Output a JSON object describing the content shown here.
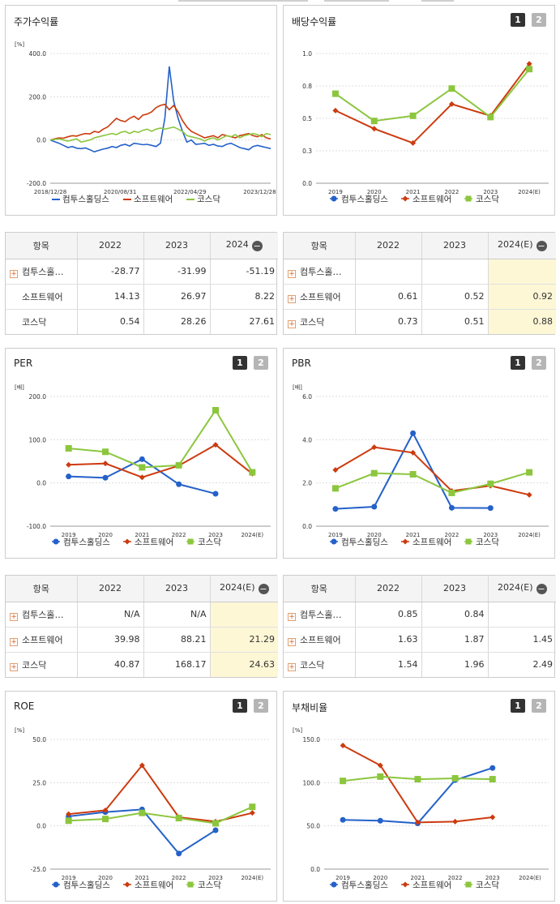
{
  "colors": {
    "s1": "#2461c9",
    "s2": "#cc3b0f",
    "s3": "#8cc63e",
    "hl": "#fdf7d6"
  },
  "legend": [
    "컴투스홀딩스",
    "소프트웨어",
    "코스닥"
  ],
  "panels": {
    "price": {
      "title": "주가수익률"
    },
    "dividend": {
      "title": "배당수익률"
    },
    "per": {
      "title": "PER"
    },
    "pbr": {
      "title": "PBR"
    },
    "roe": {
      "title": "ROE"
    },
    "debt": {
      "title": "부채비율"
    }
  },
  "buttons": {
    "one": "1",
    "two": "2"
  },
  "tables": {
    "price": {
      "headers": [
        "항목",
        "2022",
        "2023",
        "2024"
      ],
      "rows": [
        {
          "name": "컴투스홀…",
          "plus": true,
          "vals": [
            "-28.77",
            "-31.99",
            "-51.19"
          ]
        },
        {
          "name": "소프트웨어",
          "plus": false,
          "vals": [
            "14.13",
            "26.97",
            "8.22"
          ]
        },
        {
          "name": "코스닥",
          "plus": false,
          "vals": [
            "0.54",
            "28.26",
            "27.61"
          ]
        }
      ]
    },
    "dividend": {
      "headers": [
        "항목",
        "2022",
        "2023",
        "2024(E)"
      ],
      "rows": [
        {
          "name": "컴투스홀…",
          "plus": true,
          "vals": [
            "",
            "",
            ""
          ]
        },
        {
          "name": "소프트웨어",
          "plus": true,
          "vals": [
            "0.61",
            "0.52",
            "0.92"
          ]
        },
        {
          "name": "코스닥",
          "plus": true,
          "vals": [
            "0.73",
            "0.51",
            "0.88"
          ]
        }
      ]
    },
    "per": {
      "headers": [
        "항목",
        "2022",
        "2023",
        "2024(E)"
      ],
      "rows": [
        {
          "name": "컴투스홀…",
          "plus": true,
          "vals": [
            "N/A",
            "N/A",
            ""
          ]
        },
        {
          "name": "소프트웨어",
          "plus": true,
          "vals": [
            "39.98",
            "88.21",
            "21.29"
          ]
        },
        {
          "name": "코스닥",
          "plus": true,
          "vals": [
            "40.87",
            "168.17",
            "24.63"
          ]
        }
      ]
    },
    "pbr": {
      "headers": [
        "항목",
        "2022",
        "2023",
        "2024(E)"
      ],
      "rows": [
        {
          "name": "컴투스홀…",
          "plus": true,
          "vals": [
            "0.85",
            "0.84",
            ""
          ]
        },
        {
          "name": "소프트웨어",
          "plus": true,
          "vals": [
            "1.63",
            "1.87",
            "1.45"
          ]
        },
        {
          "name": "코스닥",
          "plus": true,
          "vals": [
            "1.54",
            "1.96",
            "2.49"
          ]
        }
      ]
    }
  },
  "chart_data": [
    {
      "id": "price",
      "type": "line",
      "title": "주가수익률",
      "unit": "[%]",
      "ylim": [
        -200,
        400
      ],
      "yticks": [
        "400.0",
        "200.0",
        "0.0",
        "-200.0"
      ],
      "xticks": [
        "2018/12/28",
        "2020/08/31",
        "2022/04/29",
        "2023/12/28"
      ],
      "series": [
        {
          "name": "컴투스홀딩스",
          "values": [
            0,
            -8,
            -15,
            -25,
            -35,
            -30,
            -38,
            -40,
            -37,
            -45,
            -55,
            -48,
            -42,
            -38,
            -30,
            -35,
            -25,
            -20,
            -28,
            -15,
            -18,
            -22,
            -20,
            -25,
            -30,
            -15,
            100,
            340,
            180,
            100,
            40,
            -10,
            0,
            -20,
            -18,
            -15,
            -25,
            -20,
            -28,
            -30,
            -20,
            -15,
            -25,
            -35,
            -40,
            -45,
            -30,
            -25,
            -30,
            -35,
            -40
          ]
        },
        {
          "name": "소프트웨어",
          "values": [
            0,
            5,
            10,
            8,
            15,
            20,
            18,
            25,
            30,
            28,
            40,
            35,
            50,
            60,
            80,
            100,
            90,
            85,
            100,
            110,
            95,
            115,
            120,
            130,
            150,
            160,
            165,
            140,
            160,
            130,
            90,
            60,
            40,
            30,
            20,
            10,
            15,
            20,
            10,
            25,
            20,
            15,
            10,
            20,
            25,
            30,
            20,
            15,
            25,
            10,
            5
          ]
        },
        {
          "name": "코스닥",
          "values": [
            0,
            3,
            5,
            0,
            -5,
            0,
            5,
            -10,
            -5,
            0,
            10,
            15,
            20,
            25,
            30,
            25,
            35,
            40,
            30,
            40,
            35,
            45,
            50,
            40,
            50,
            55,
            50,
            55,
            60,
            50,
            40,
            20,
            15,
            10,
            5,
            -5,
            5,
            10,
            0,
            10,
            20,
            15,
            25,
            10,
            20,
            25,
            30,
            25,
            15,
            30,
            25
          ]
        }
      ]
    },
    {
      "id": "dividend",
      "type": "line",
      "title": "배당수익률",
      "ylim": [
        0,
        1
      ],
      "yticks": [
        "1.0",
        "0.8",
        "0.5",
        "0.3",
        "0.0"
      ],
      "categories": [
        "2019",
        "2020",
        "2021",
        "2022",
        "2023",
        "2024(E)"
      ],
      "series": [
        {
          "name": "컴투스홀딩스",
          "values": [
            null,
            null,
            null,
            null,
            null,
            null
          ]
        },
        {
          "name": "소프트웨어",
          "values": [
            0.56,
            0.42,
            0.31,
            0.61,
            0.52,
            0.92
          ]
        },
        {
          "name": "코스닥",
          "values": [
            0.69,
            0.48,
            0.52,
            0.73,
            0.51,
            0.88
          ]
        }
      ]
    },
    {
      "id": "per",
      "type": "line",
      "title": "PER",
      "unit": "[배]",
      "ylim": [
        -100,
        200
      ],
      "yticks": [
        "200.0",
        "100.0",
        "0.0",
        "-100.0"
      ],
      "categories": [
        "2019",
        "2020",
        "2021",
        "2022",
        "2023",
        "2024(E)"
      ],
      "series": [
        {
          "name": "컴투스홀딩스",
          "values": [
            15,
            12,
            55,
            -3,
            -25,
            null
          ]
        },
        {
          "name": "소프트웨어",
          "values": [
            42,
            45,
            13,
            39.98,
            88.21,
            21.29
          ]
        },
        {
          "name": "코스닥",
          "values": [
            80,
            72,
            36,
            40.87,
            168.17,
            24.63
          ]
        }
      ]
    },
    {
      "id": "pbr",
      "type": "line",
      "title": "PBR",
      "unit": "[배]",
      "ylim": [
        0,
        6
      ],
      "yticks": [
        "6.0",
        "4.0",
        "2.0",
        "0.0"
      ],
      "categories": [
        "2019",
        "2020",
        "2021",
        "2022",
        "2023",
        "2024(E)"
      ],
      "series": [
        {
          "name": "컴투스홀딩스",
          "values": [
            0.8,
            0.9,
            4.3,
            0.85,
            0.84,
            null
          ]
        },
        {
          "name": "소프트웨어",
          "values": [
            2.6,
            3.65,
            3.4,
            1.63,
            1.87,
            1.45
          ]
        },
        {
          "name": "코스닥",
          "values": [
            1.75,
            2.45,
            2.4,
            1.54,
            1.96,
            2.49
          ]
        }
      ]
    },
    {
      "id": "roe",
      "type": "line",
      "title": "ROE",
      "unit": "[%]",
      "ylim": [
        -25,
        50
      ],
      "yticks": [
        "50.0",
        "25.0",
        "0.0",
        "-25.0"
      ],
      "categories": [
        "2019",
        "2020",
        "2021",
        "2022",
        "2023",
        "2024(E)"
      ],
      "series": [
        {
          "name": "컴투스홀딩스",
          "values": [
            5.5,
            8,
            9.5,
            -16,
            -2.5,
            null
          ]
        },
        {
          "name": "소프트웨어",
          "values": [
            6.8,
            9,
            35,
            5,
            2.5,
            7.5
          ]
        },
        {
          "name": "코스닥",
          "values": [
            3,
            4,
            7.5,
            4.5,
            1.5,
            11
          ]
        }
      ]
    },
    {
      "id": "debt",
      "type": "line",
      "title": "부채비율",
      "unit": "[%]",
      "ylim": [
        0,
        150
      ],
      "yticks": [
        "150.0",
        "100.0",
        "50.0",
        "0.0"
      ],
      "categories": [
        "2019",
        "2020",
        "2021",
        "2022",
        "2023",
        "2024(E)"
      ],
      "series": [
        {
          "name": "컴투스홀딩스",
          "values": [
            57,
            56,
            53,
            103,
            117,
            null
          ]
        },
        {
          "name": "소프트웨어",
          "values": [
            143,
            120,
            54,
            55,
            60,
            null
          ]
        },
        {
          "name": "코스닥",
          "values": [
            102,
            107,
            104,
            105,
            104,
            null
          ]
        }
      ]
    }
  ]
}
